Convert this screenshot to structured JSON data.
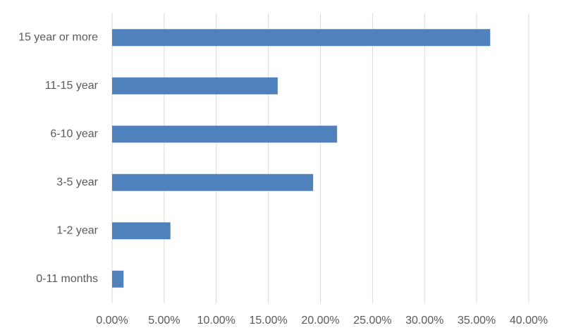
{
  "chart_data": {
    "type": "bar",
    "orientation": "horizontal",
    "categories": [
      "15 year or more",
      "11-15 year",
      "6-10 year",
      "3-5 year",
      "1-2 year",
      "0-11 months"
    ],
    "values": [
      36.3,
      15.9,
      21.6,
      19.3,
      5.6,
      1.1
    ],
    "color": "#4f81bd",
    "xlim": [
      0,
      40
    ],
    "xticks": [
      {
        "value": 0,
        "label": "0.00%"
      },
      {
        "value": 5,
        "label": "5.00%"
      },
      {
        "value": 10,
        "label": "10.00%"
      },
      {
        "value": 15,
        "label": "15.00%"
      },
      {
        "value": 20,
        "label": "20.00%"
      },
      {
        "value": 25,
        "label": "25.00%"
      },
      {
        "value": 30,
        "label": "30.00%"
      },
      {
        "value": 35,
        "label": "35.00%"
      },
      {
        "value": 40,
        "label": "40.00%"
      }
    ],
    "grid": true
  }
}
